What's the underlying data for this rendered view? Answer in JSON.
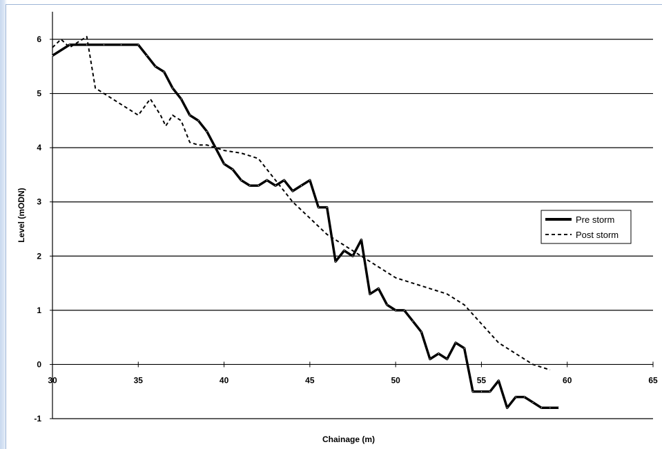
{
  "chart_data": {
    "type": "line",
    "xlabel": "Chainage (m)",
    "ylabel": "Level (mODN)",
    "xlim": [
      30,
      65
    ],
    "ylim": [
      -1,
      6
    ],
    "xticks": [
      30,
      35,
      40,
      45,
      50,
      55,
      60,
      65
    ],
    "yticks": [
      -1,
      0,
      1,
      2,
      3,
      4,
      5,
      6
    ],
    "grid": "horizontal",
    "legend_position": "right",
    "series": [
      {
        "name": "Pre storm",
        "style": "solid",
        "color": "#000000",
        "x": [
          30,
          31,
          32,
          33,
          34,
          35,
          35.5,
          36,
          36.5,
          37,
          37.5,
          38,
          38.5,
          39,
          39.5,
          40,
          40.5,
          41,
          41.5,
          42,
          42.5,
          43,
          43.5,
          44,
          44.5,
          45,
          45.5,
          46,
          46.5,
          47,
          47.5,
          48,
          48.5,
          49,
          49.5,
          50,
          50.5,
          51,
          51.5,
          52,
          52.5,
          53,
          53.5,
          54,
          54.5,
          55,
          55.5,
          56,
          56.5,
          57,
          57.5,
          58,
          58.5,
          59,
          59.5
        ],
        "y": [
          5.7,
          5.9,
          5.9,
          5.9,
          5.9,
          5.9,
          5.7,
          5.5,
          5.4,
          5.1,
          4.9,
          4.6,
          4.5,
          4.3,
          4.0,
          3.7,
          3.6,
          3.4,
          3.3,
          3.3,
          3.4,
          3.3,
          3.4,
          3.2,
          3.3,
          3.4,
          2.9,
          2.9,
          1.9,
          2.1,
          2.0,
          2.3,
          1.3,
          1.4,
          1.1,
          1.0,
          1.0,
          0.8,
          0.6,
          0.1,
          0.2,
          0.1,
          0.4,
          0.3,
          -0.5,
          -0.5,
          -0.5,
          -0.3,
          -0.8,
          -0.6,
          -0.6,
          -0.7,
          -0.8,
          -0.8,
          -0.8
        ]
      },
      {
        "name": "Post storm",
        "style": "dashed",
        "color": "#000000",
        "x": [
          30,
          30.5,
          31,
          31.5,
          32,
          32.5,
          33,
          34,
          35,
          35.7,
          36.3,
          36.6,
          37,
          37.5,
          38,
          38.5,
          39,
          40,
          41,
          42,
          43,
          44,
          45,
          46,
          47,
          48,
          49,
          50,
          51,
          52,
          53,
          54,
          55,
          56,
          57,
          58,
          59
        ],
        "y": [
          5.85,
          6.0,
          5.85,
          5.95,
          6.05,
          5.1,
          5.0,
          4.8,
          4.6,
          4.9,
          4.6,
          4.4,
          4.6,
          4.5,
          4.1,
          4.05,
          4.05,
          3.95,
          3.9,
          3.8,
          3.4,
          3.0,
          2.7,
          2.4,
          2.2,
          2.0,
          1.8,
          1.6,
          1.5,
          1.4,
          1.3,
          1.1,
          0.75,
          0.4,
          0.2,
          0.0,
          -0.1
        ]
      }
    ]
  }
}
